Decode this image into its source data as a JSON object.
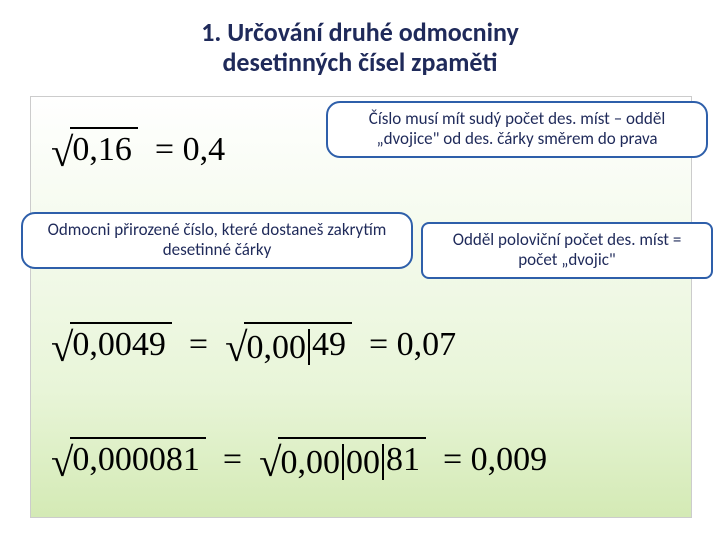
{
  "title": {
    "line1": "1. Určování druhé odmocniny",
    "line2": "desetinných čísel zpaměti"
  },
  "callouts": {
    "top": "Číslo musí mít sudý počet des. míst – odděl „dvojice\" od des. čárky směrem do prava",
    "left": "Odmocni přirozené číslo, které dostaneš zakrytím desetinné čárky",
    "right": "Odděl poloviční počet des. míst = počet „dvojic\""
  },
  "equations": {
    "eq1": {
      "radicand": "0,16",
      "result": "0,4"
    },
    "eq2": {
      "radicand1": "0,0049",
      "group_a": "0,00",
      "group_b": "49",
      "result": "0,07"
    },
    "eq3": {
      "radicand1": "0,000081",
      "group_a": "0,00",
      "group_b": "00",
      "group_c": "81",
      "result": "0,009"
    }
  },
  "colors": {
    "title_text": "#1f2a5a",
    "callout_border": "#2e5faa",
    "callout_text": "#1f2a5a",
    "gradient_top": "#ffffff",
    "gradient_bottom": "#d4eab5",
    "math": "#000000"
  },
  "typography": {
    "title_fontsize": 26,
    "callout_fontsize": 17,
    "math_fontsize": 34
  }
}
